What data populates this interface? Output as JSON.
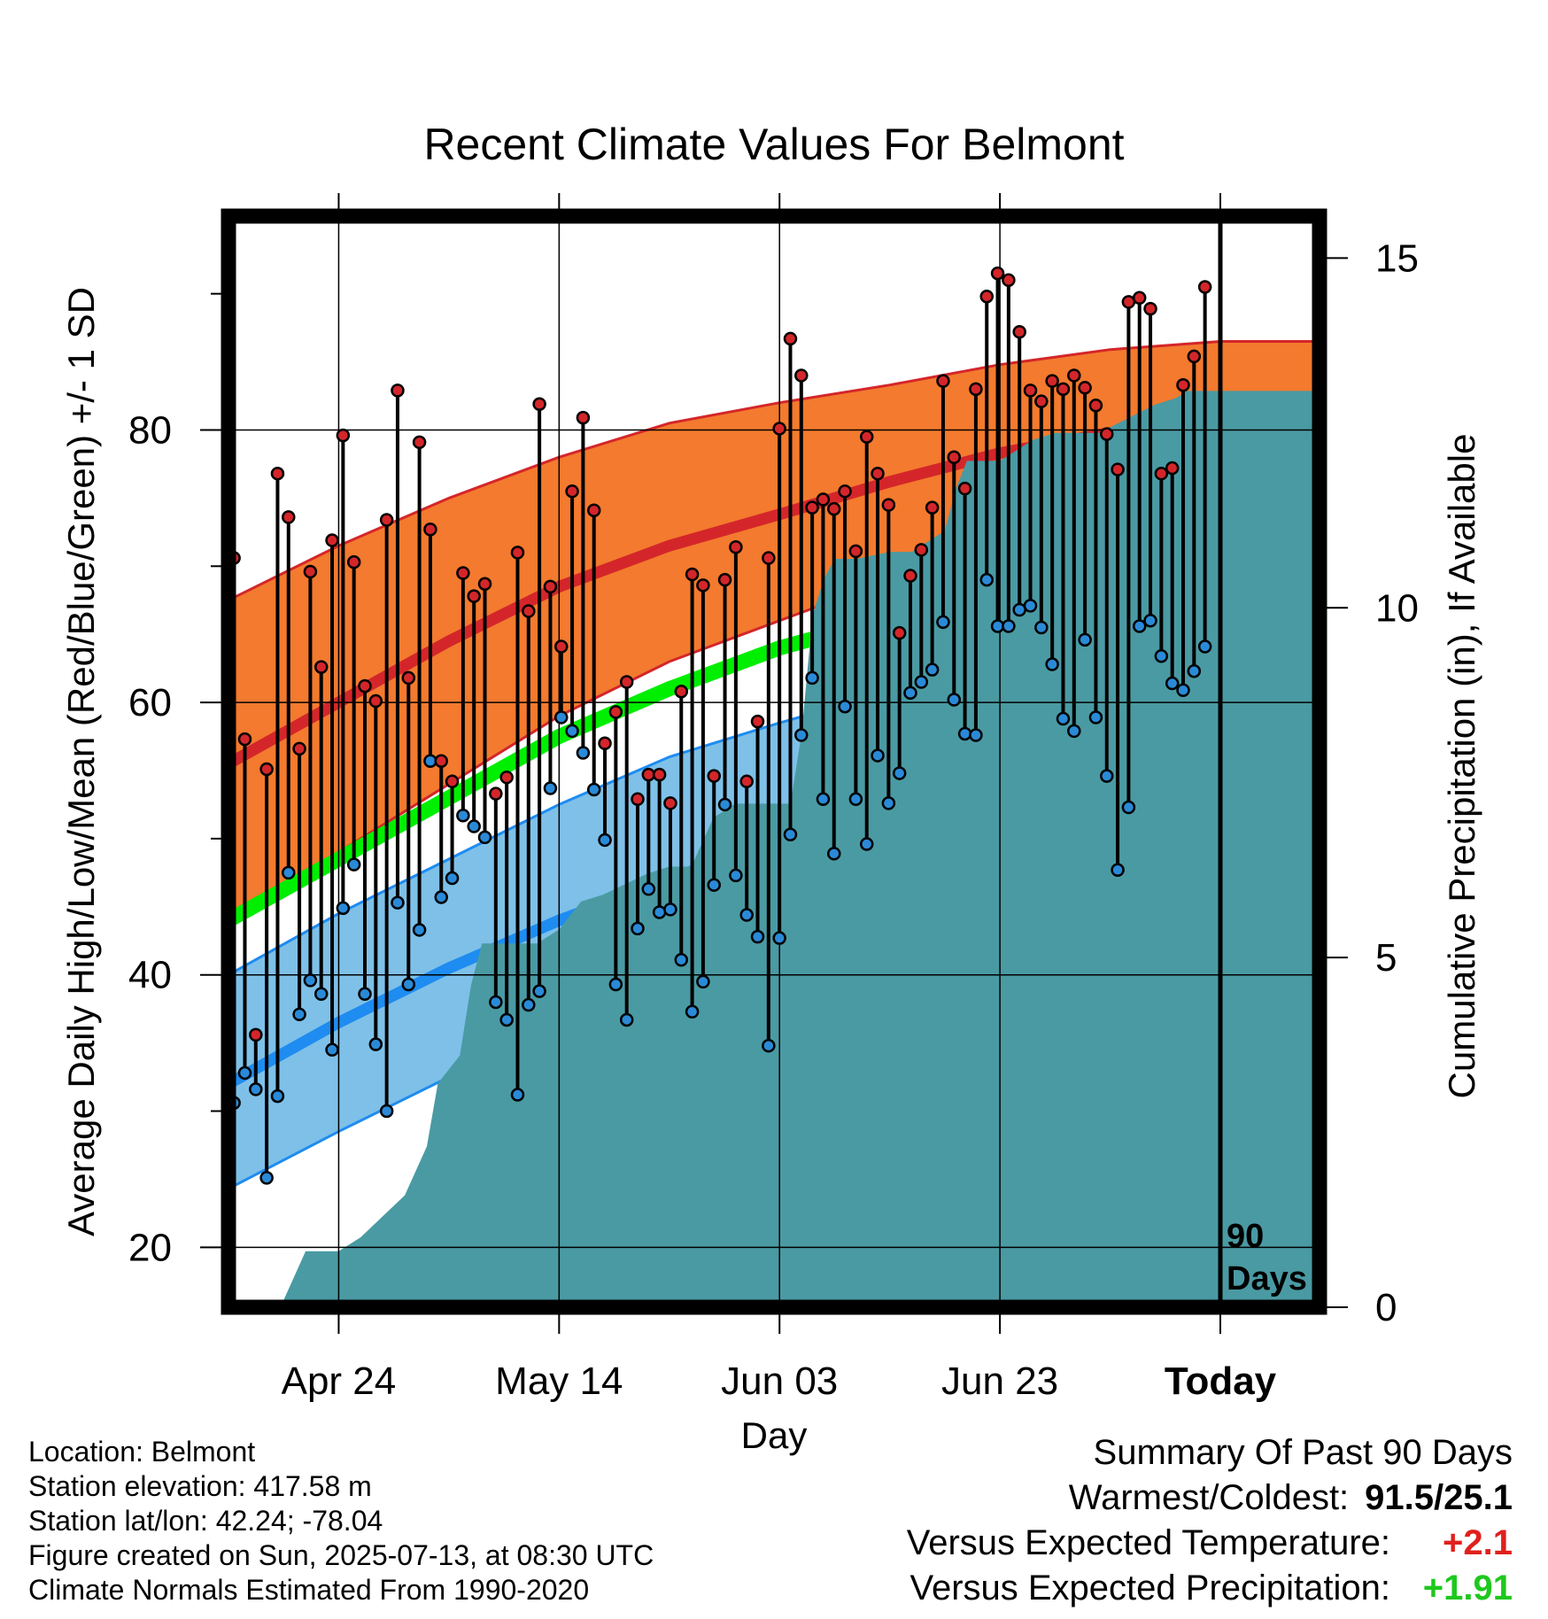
{
  "chart_data": {
    "type": "line",
    "title": "Recent Climate Values For Belmont",
    "xlabel": "Day",
    "ylabel": "Average Daily High/Low/Mean (Red/Blue/Green) +/- 1 SD",
    "y2label": "Cumulative Precipitation (in), If Available",
    "ylim": [
      15.6,
      95.7
    ],
    "y_ticks": [
      20,
      40,
      60,
      80
    ],
    "y2lim": [
      0,
      15.6
    ],
    "y2_ticks": [
      0,
      5,
      10,
      15
    ],
    "x_tick_labels": [
      "Apr 24",
      "May 14",
      "Jun 03",
      "Jun 23",
      "Today"
    ],
    "x_tick_dates": [
      "2025-04-24",
      "2025-05-14",
      "2025-06-03",
      "2025-06-23",
      "2025-07-13"
    ],
    "x_start": "2025-04-14",
    "x_end": "2025-07-22",
    "today": "2025-07-13",
    "today_annotation": "90 Days",
    "grid": true,
    "colors": {
      "high_band": "#F37A2E",
      "high_band_edge": "#D4262A",
      "high_mean": "#D4262A",
      "low_band": "#7EC0E8",
      "low_band_edge": "#1E8CF0",
      "low_mean": "#1E8CF0",
      "mean_line": "#00EE00",
      "precip": "#4A9AA3",
      "high_marker": "#D4262A",
      "low_marker": "#2A8AD8"
    },
    "normals": {
      "x": [
        "2025-04-14",
        "2025-04-24",
        "2025-05-04",
        "2025-05-14",
        "2025-05-24",
        "2025-06-03",
        "2025-06-13",
        "2025-06-23",
        "2025-07-03",
        "2025-07-13",
        "2025-07-22"
      ],
      "high_mean": [
        55.5,
        60.0,
        64.5,
        68.5,
        71.5,
        73.8,
        76.2,
        78.3,
        79.8,
        80.6,
        80.6
      ],
      "high_upper": [
        67.5,
        71.5,
        75.0,
        78.0,
        80.5,
        82.0,
        83.3,
        84.8,
        85.9,
        86.5,
        86.5
      ],
      "high_lower": [
        44.5,
        49.0,
        54.0,
        59.0,
        63.0,
        66.0,
        69.0,
        71.5,
        73.5,
        74.6,
        74.8
      ],
      "mean": [
        44.0,
        48.5,
        53.0,
        57.5,
        61.0,
        64.0,
        66.2,
        67.8,
        68.6,
        69.0,
        69.0
      ],
      "low_mean": [
        32.0,
        36.5,
        40.5,
        44.0,
        47.0,
        50.0,
        52.5,
        55.0,
        56.7,
        57.5,
        57.5
      ],
      "low_upper": [
        40.0,
        44.5,
        48.5,
        52.5,
        56.0,
        58.5,
        60.8,
        62.5,
        63.3,
        63.5,
        63.3
      ],
      "low_lower": [
        24.3,
        28.5,
        32.5,
        35.7,
        39.0,
        42.0,
        45.3,
        48.5,
        50.8,
        51.6,
        51.8
      ]
    },
    "daily": {
      "start": "2025-04-14",
      "high": [
        70.6,
        57.3,
        35.6,
        55.1,
        76.8,
        73.6,
        56.6,
        69.6,
        62.6,
        71.9,
        79.6,
        70.3,
        61.2,
        60.1,
        73.4,
        82.9,
        61.8,
        79.1,
        72.7,
        55.7,
        54.2,
        69.5,
        67.8,
        68.7,
        53.3,
        54.5,
        71.0,
        66.7,
        81.9,
        68.5,
        64.1,
        75.5,
        80.9,
        74.1,
        57.0,
        59.3,
        61.5,
        52.9,
        54.7,
        54.7,
        52.6,
        60.8,
        69.4,
        68.6,
        54.6,
        69.0,
        71.4,
        54.2,
        58.6,
        70.6,
        80.1,
        86.7,
        84.0,
        74.3,
        74.9,
        74.2,
        75.5,
        71.1,
        79.5,
        76.8,
        74.5,
        65.1,
        69.3,
        71.2,
        74.3,
        83.6,
        78.0,
        75.7,
        83.0,
        89.8,
        91.5,
        91.0,
        87.2,
        82.9,
        82.1,
        83.6,
        83.0,
        84.0,
        83.1,
        81.8,
        79.7,
        77.1,
        89.4,
        89.7,
        88.9,
        76.8,
        77.2,
        83.3,
        85.4,
        90.5
      ],
      "low": [
        30.6,
        32.8,
        31.6,
        25.1,
        31.1,
        47.5,
        37.1,
        39.6,
        38.6,
        34.5,
        44.9,
        48.1,
        38.6,
        34.9,
        30.0,
        45.3,
        39.3,
        43.3,
        55.7,
        45.7,
        47.1,
        51.7,
        50.9,
        50.1,
        38.0,
        36.7,
        31.2,
        37.8,
        38.8,
        53.7,
        58.9,
        57.9,
        56.3,
        53.6,
        49.9,
        39.3,
        36.7,
        43.4,
        46.3,
        44.6,
        44.8,
        41.1,
        37.3,
        39.5,
        46.6,
        52.5,
        47.3,
        44.4,
        42.8,
        34.8,
        42.7,
        50.3,
        57.6,
        61.8,
        52.9,
        48.9,
        59.7,
        52.9,
        49.6,
        56.1,
        52.6,
        54.8,
        60.7,
        61.5,
        62.4,
        65.9,
        60.2,
        57.7,
        57.6,
        69.0,
        65.6,
        65.6,
        66.8,
        67.1,
        65.5,
        62.8,
        58.8,
        57.9,
        64.6,
        58.9,
        54.6,
        47.7,
        52.3,
        65.6,
        66.0,
        63.4,
        61.4,
        60.9,
        62.3,
        64.1
      ]
    },
    "precip": {
      "x": [
        "2025-04-14",
        "2025-04-18",
        "2025-04-19",
        "2025-04-21",
        "2025-04-24",
        "2025-04-26",
        "2025-04-28",
        "2025-04-30",
        "2025-05-02",
        "2025-05-03",
        "2025-05-05",
        "2025-05-06",
        "2025-05-07",
        "2025-05-08",
        "2025-05-10",
        "2025-05-12",
        "2025-05-14",
        "2025-05-16",
        "2025-05-18",
        "2025-05-22",
        "2025-05-24",
        "2025-05-26",
        "2025-05-28",
        "2025-05-30",
        "2025-06-04",
        "2025-06-05",
        "2025-06-06",
        "2025-06-07",
        "2025-06-08",
        "2025-06-10",
        "2025-06-13",
        "2025-06-15",
        "2025-06-18",
        "2025-06-19",
        "2025-06-20",
        "2025-06-23",
        "2025-06-26",
        "2025-06-28",
        "2025-07-02",
        "2025-07-07",
        "2025-07-09",
        "2025-07-10",
        "2025-07-13",
        "2025-07-22"
      ],
      "y": [
        0.0,
        0.1,
        0.1,
        0.8,
        0.8,
        1.0,
        1.3,
        1.6,
        2.3,
        3.2,
        3.6,
        4.6,
        5.2,
        5.2,
        5.2,
        5.2,
        5.4,
        5.8,
        5.9,
        6.2,
        6.3,
        6.3,
        7.0,
        7.2,
        7.2,
        8.2,
        9.9,
        10.4,
        10.7,
        10.7,
        10.8,
        10.8,
        11.1,
        11.7,
        12.1,
        12.1,
        12.4,
        12.5,
        12.5,
        12.9,
        13.0,
        13.1,
        13.1,
        13.1
      ]
    }
  },
  "info": {
    "location": "Location: Belmont",
    "elevation": "Station elevation: 417.58 m",
    "latlon": "Station lat/lon: 42.24; -78.04",
    "created": "Figure created on Sun, 2025-07-13, at 08:30 UTC",
    "normals_note": "Climate Normals Estimated From 1990-2020"
  },
  "summary": {
    "title": "Summary Of Past 90 Days",
    "warm_cold_label": "Warmest/Coldest:",
    "warm_cold_value": "91.5/25.1",
    "temp_label": "Versus Expected Temperature:",
    "temp_value": "+2.1",
    "temp_color": "#E0201C",
    "precip_label": "Versus Expected Precipitation:",
    "precip_value": "+1.91",
    "precip_color": "#1EC81E"
  }
}
